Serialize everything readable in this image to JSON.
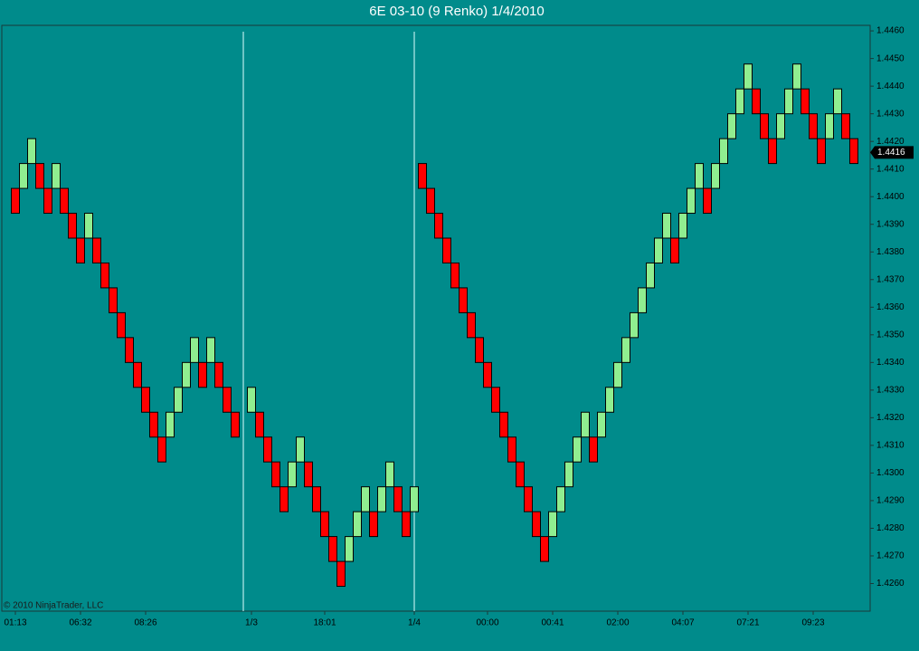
{
  "chart_data": {
    "type": "renko",
    "title": "6E 03-10 (9 Renko)  1/4/2010",
    "copyright": "© 2010 NinjaTrader, LLC",
    "last_price": 1.4416,
    "up_color": "#90ee90",
    "down_color": "#ff0000",
    "background": "#008b8b",
    "categories": [
      "01:13",
      null,
      null,
      null,
      null,
      null,
      null,
      null,
      "06:32",
      null,
      null,
      null,
      null,
      null,
      null,
      null,
      "08:26",
      null,
      null,
      null,
      null,
      null,
      null,
      null,
      null,
      null,
      null,
      null,
      null,
      "1/3",
      null,
      null,
      null,
      null,
      null,
      null,
      null,
      null,
      "18:01",
      null,
      null,
      null,
      null,
      null,
      null,
      null,
      null,
      null,
      null,
      "1/4",
      null,
      null,
      null,
      null,
      null,
      null,
      null,
      null,
      "00:00",
      null,
      null,
      null,
      null,
      null,
      null,
      null,
      "00:41",
      null,
      null,
      null,
      null,
      null,
      null,
      null,
      "02:00",
      null,
      null,
      null,
      null,
      null,
      null,
      null,
      "04:07",
      null,
      null,
      null,
      null,
      null,
      null,
      null,
      "07:21",
      null,
      null,
      null,
      null,
      null,
      null,
      null,
      "09:23",
      null,
      null,
      null,
      null,
      null
    ],
    "open": [
      1.4403,
      1.4403,
      1.4412,
      1.4412,
      1.4403,
      1.4403,
      1.4403,
      1.4394,
      1.4385,
      1.4385,
      1.4385,
      1.4376,
      1.4367,
      1.4358,
      1.4349,
      1.434,
      1.4331,
      1.4322,
      1.4313,
      1.4313,
      1.4322,
      1.4331,
      1.434,
      1.434,
      1.434,
      1.434,
      1.4331,
      1.4322,
      null,
      1.4322,
      1.4322,
      1.4313,
      1.4304,
      1.4295,
      1.4295,
      1.4304,
      1.4304,
      1.4295,
      1.4286,
      1.4277,
      1.4268,
      1.4268,
      1.4277,
      1.4286,
      1.4286,
      1.4286,
      1.4295,
      1.4295,
      1.4286,
      1.4286,
      1.4412,
      1.4403,
      1.4394,
      1.4385,
      1.4376,
      1.4367,
      1.4358,
      1.4349,
      1.434,
      1.4331,
      1.4322,
      1.4313,
      1.4304,
      1.4295,
      1.4286,
      1.4277,
      1.4277,
      1.4286,
      1.4295,
      1.4304,
      1.4313,
      1.4313,
      1.4313,
      1.4322,
      1.4331,
      1.434,
      1.4349,
      1.4358,
      1.4367,
      1.4376,
      1.4385,
      1.4385,
      1.4385,
      1.4394,
      1.4403,
      1.4403,
      1.4403,
      1.4412,
      1.4421,
      1.443,
      1.4439,
      1.4439,
      1.443,
      1.4421,
      1.4421,
      1.443,
      1.4439,
      1.4439,
      1.443,
      1.4421,
      1.4421,
      1.443,
      1.443,
      1.4421
    ],
    "close": [
      1.4394,
      1.4412,
      1.4421,
      1.4403,
      1.4394,
      1.4412,
      1.4394,
      1.4385,
      1.4376,
      1.4394,
      1.4376,
      1.4367,
      1.4358,
      1.4349,
      1.434,
      1.4331,
      1.4322,
      1.4313,
      1.4304,
      1.4322,
      1.4331,
      1.434,
      1.4349,
      1.4331,
      1.4349,
      1.4331,
      1.4322,
      1.4313,
      null,
      1.4331,
      1.4313,
      1.4304,
      1.4295,
      1.4286,
      1.4304,
      1.4313,
      1.4295,
      1.4286,
      1.4277,
      1.4268,
      1.4259,
      1.4277,
      1.4286,
      1.4295,
      1.4277,
      1.4295,
      1.4304,
      1.4286,
      1.4277,
      1.4295,
      1.4403,
      1.4394,
      1.4385,
      1.4376,
      1.4367,
      1.4358,
      1.4349,
      1.434,
      1.4331,
      1.4322,
      1.4313,
      1.4304,
      1.4295,
      1.4286,
      1.4277,
      1.4268,
      1.4286,
      1.4295,
      1.4304,
      1.4313,
      1.4322,
      1.4304,
      1.4322,
      1.4331,
      1.434,
      1.4349,
      1.4358,
      1.4367,
      1.4376,
      1.4385,
      1.4394,
      1.4376,
      1.4394,
      1.4403,
      1.4412,
      1.4394,
      1.4412,
      1.4421,
      1.443,
      1.4439,
      1.4448,
      1.443,
      1.4421,
      1.4412,
      1.443,
      1.4439,
      1.4448,
      1.443,
      1.4421,
      1.4412,
      1.443,
      1.4439,
      1.4421,
      1.4412
    ],
    "ylim": [
      1.425,
      1.4462
    ],
    "yticks": [
      {
        "value": 1.426,
        "label": "1.4260"
      },
      {
        "value": 1.427,
        "label": "1.4270"
      },
      {
        "value": 1.428,
        "label": "1.4280"
      },
      {
        "value": 1.429,
        "label": "1.4290"
      },
      {
        "value": 1.43,
        "label": "1.4300"
      },
      {
        "value": 1.431,
        "label": "1.4310"
      },
      {
        "value": 1.432,
        "label": "1.4320"
      },
      {
        "value": 1.433,
        "label": "1.4330"
      },
      {
        "value": 1.434,
        "label": "1.4340"
      },
      {
        "value": 1.435,
        "label": "1.4350"
      },
      {
        "value": 1.436,
        "label": "1.4360"
      },
      {
        "value": 1.437,
        "label": "1.4370"
      },
      {
        "value": 1.438,
        "label": "1.4380"
      },
      {
        "value": 1.439,
        "label": "1.4390"
      },
      {
        "value": 1.44,
        "label": "1.4400"
      },
      {
        "value": 1.441,
        "label": "1.4410"
      },
      {
        "value": 1.442,
        "label": "1.4420"
      },
      {
        "value": 1.443,
        "label": "1.4430"
      },
      {
        "value": 1.444,
        "label": "1.4440"
      },
      {
        "value": 1.445,
        "label": "1.4450"
      },
      {
        "value": 1.446,
        "label": "1.4460"
      }
    ]
  }
}
